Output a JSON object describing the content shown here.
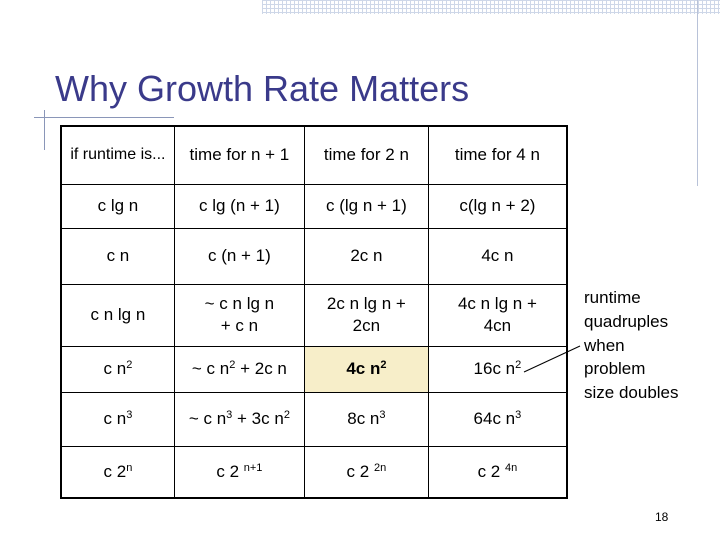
{
  "title": "Why Growth Rate Matters",
  "table": {
    "header": [
      "if runtime is...",
      "time for n + 1",
      "time for 2 n",
      "time for 4 n"
    ],
    "rows": [
      {
        "c0": "c lg n",
        "c1": "c lg (n + 1)",
        "c2": "c (lg n + 1)",
        "c3": "c(lg n + 2)"
      },
      {
        "c0": "c n",
        "c1": "c (n + 1)",
        "c2": "2c n",
        "c3": "4c n"
      },
      {
        "c0": "c n lg n",
        "c1a": "~ c n lg n",
        "c1b": "+ c n",
        "c2a": "2c n lg n +",
        "c2b": "2cn",
        "c3a": "4c n lg n +",
        "c3b": "4cn"
      },
      {
        "c0": "c n",
        "c0s": "2",
        "c1": "~ c n",
        "c1s": "2",
        "c1t": " + 2c n",
        "c2": "4c n",
        "c2s": "2",
        "c3": "16c n",
        "c3s": "2"
      },
      {
        "c0": "c n",
        "c0s": "3",
        "c1": "~ c n",
        "c1s": "3",
        "c1t": " + 3c n",
        "c1u": "2",
        "c2": "8c n",
        "c2s": "3",
        "c3": "64c n",
        "c3s": "3"
      },
      {
        "c0": "c 2",
        "c0s": "n",
        "c1": "c 2",
        "c1s": "n+1",
        "c2": "c 2",
        "c2s": "2n",
        "c3": "c 2",
        "c3s": "4n"
      }
    ]
  },
  "callout": [
    "runtime",
    "quadruples",
    "when",
    "problem",
    "size doubles"
  ],
  "page_number": "18",
  "colors": {
    "title": "#3a3a8a",
    "highlight": "#f7eec9"
  }
}
